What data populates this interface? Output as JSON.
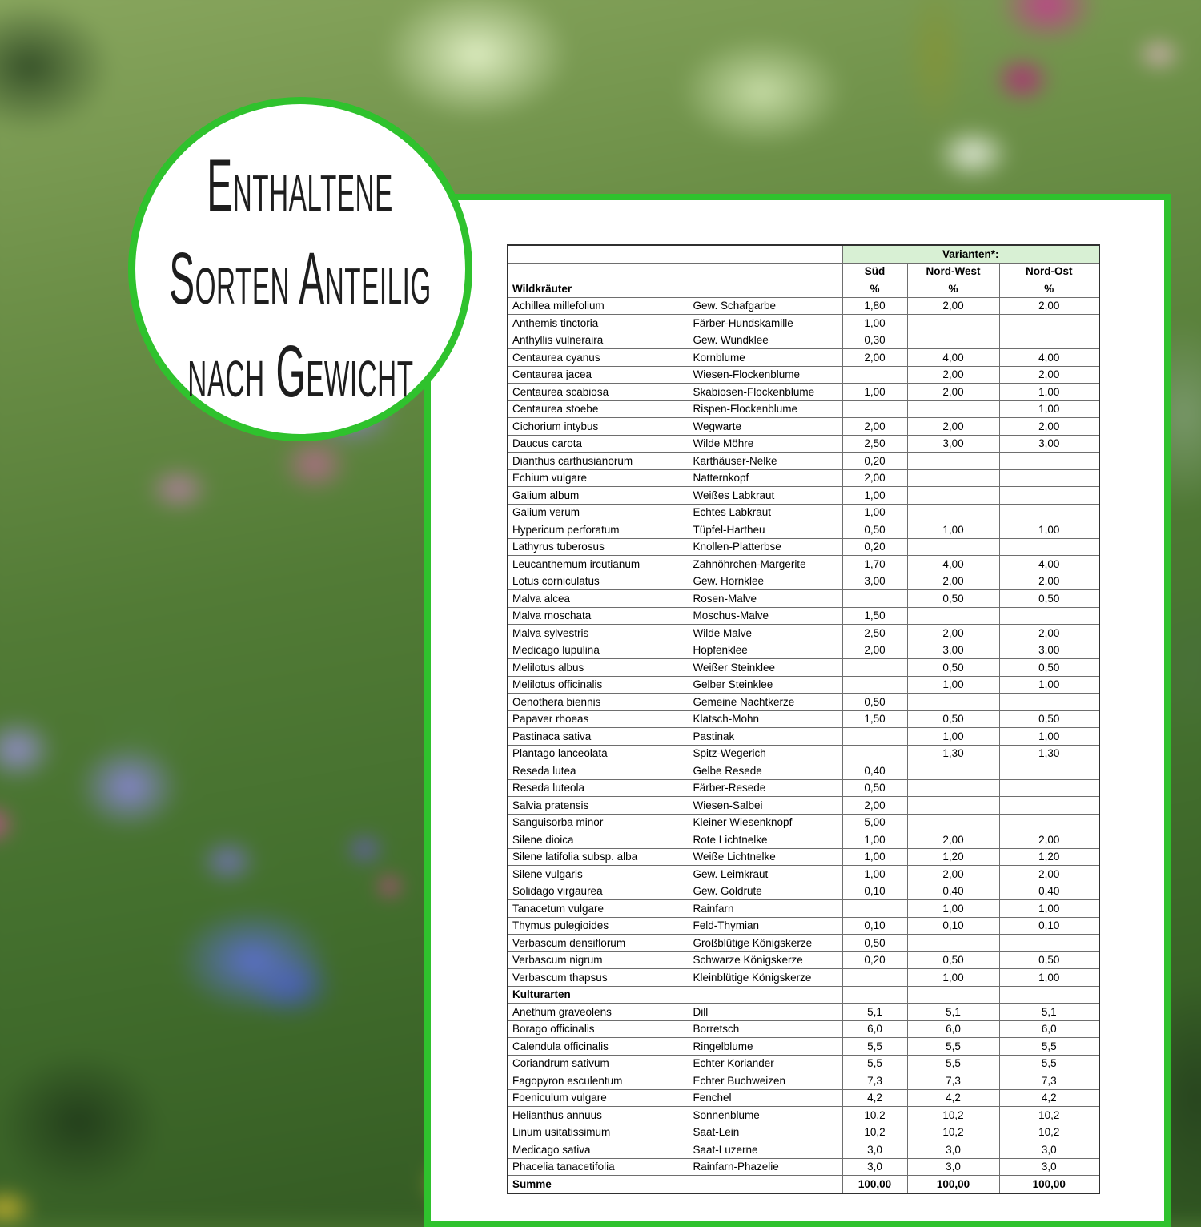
{
  "colors": {
    "accent_green": "#2fc22d",
    "variants_header_bg": "#d8f0d4",
    "panel_bg": "#ffffff",
    "text": "#000000"
  },
  "circle": {
    "lines": [
      "Enthaltene",
      "Sorten Anteilig",
      "nach Gewicht"
    ]
  },
  "table": {
    "variants_header": "Varianten*:",
    "variant_columns": [
      "Süd",
      "Nord-West",
      "Nord-Ost"
    ],
    "percent_symbol": "%",
    "sections": [
      {
        "label": "Wildkräuter",
        "show_percent": true,
        "rows": [
          {
            "latin": "Achillea millefolium",
            "german": "Gew. Schafgarbe",
            "sued": "1,80",
            "nordwest": "2,00",
            "nordost": "2,00"
          },
          {
            "latin": "Anthemis tinctoria",
            "german": "Färber-Hundskamille",
            "sued": "1,00",
            "nordwest": "",
            "nordost": ""
          },
          {
            "latin": "Anthyllis vulneraira",
            "german": "Gew. Wundklee",
            "sued": "0,30",
            "nordwest": "",
            "nordost": ""
          },
          {
            "latin": "Centaurea cyanus",
            "german": "Kornblume",
            "sued": "2,00",
            "nordwest": "4,00",
            "nordost": "4,00"
          },
          {
            "latin": "Centaurea jacea",
            "german": "Wiesen-Flockenblume",
            "sued": "",
            "nordwest": "2,00",
            "nordost": "2,00"
          },
          {
            "latin": "Centaurea scabiosa",
            "german": "Skabiosen-Flockenblume",
            "sued": "1,00",
            "nordwest": "2,00",
            "nordost": "1,00"
          },
          {
            "latin": "Centaurea stoebe",
            "german": "Rispen-Flockenblume",
            "sued": "",
            "nordwest": "",
            "nordost": "1,00"
          },
          {
            "latin": "Cichorium intybus",
            "german": "Wegwarte",
            "sued": "2,00",
            "nordwest": "2,00",
            "nordost": "2,00"
          },
          {
            "latin": "Daucus carota",
            "german": "Wilde Möhre",
            "sued": "2,50",
            "nordwest": "3,00",
            "nordost": "3,00"
          },
          {
            "latin": "Dianthus carthusianorum",
            "german": "Karthäuser-Nelke",
            "sued": "0,20",
            "nordwest": "",
            "nordost": ""
          },
          {
            "latin": "Echium vulgare",
            "german": "Natternkopf",
            "sued": "2,00",
            "nordwest": "",
            "nordost": ""
          },
          {
            "latin": "Galium album",
            "german": "Weißes Labkraut",
            "sued": "1,00",
            "nordwest": "",
            "nordost": ""
          },
          {
            "latin": "Galium verum",
            "german": "Echtes Labkraut",
            "sued": "1,00",
            "nordwest": "",
            "nordost": ""
          },
          {
            "latin": "Hypericum perforatum",
            "german": "Tüpfel-Hartheu",
            "sued": "0,50",
            "nordwest": "1,00",
            "nordost": "1,00"
          },
          {
            "latin": "Lathyrus tuberosus",
            "german": "Knollen-Platterbse",
            "sued": "0,20",
            "nordwest": "",
            "nordost": ""
          },
          {
            "latin": "Leucanthemum ircutianum",
            "german": "Zahnöhrchen-Margerite",
            "sued": "1,70",
            "nordwest": "4,00",
            "nordost": "4,00"
          },
          {
            "latin": "Lotus corniculatus",
            "german": "Gew. Hornklee",
            "sued": "3,00",
            "nordwest": "2,00",
            "nordost": "2,00"
          },
          {
            "latin": "Malva alcea",
            "german": "Rosen-Malve",
            "sued": "",
            "nordwest": "0,50",
            "nordost": "0,50"
          },
          {
            "latin": "Malva moschata",
            "german": "Moschus-Malve",
            "sued": "1,50",
            "nordwest": "",
            "nordost": ""
          },
          {
            "latin": "Malva sylvestris",
            "german": "Wilde Malve",
            "sued": "2,50",
            "nordwest": "2,00",
            "nordost": "2,00"
          },
          {
            "latin": "Medicago lupulina",
            "german": "Hopfenklee",
            "sued": "2,00",
            "nordwest": "3,00",
            "nordost": "3,00"
          },
          {
            "latin": "Melilotus albus",
            "german": "Weißer Steinklee",
            "sued": "",
            "nordwest": "0,50",
            "nordost": "0,50"
          },
          {
            "latin": "Melilotus officinalis",
            "german": "Gelber Steinklee",
            "sued": "",
            "nordwest": "1,00",
            "nordost": "1,00"
          },
          {
            "latin": "Oenothera biennis",
            "german": "Gemeine Nachtkerze",
            "sued": "0,50",
            "nordwest": "",
            "nordost": ""
          },
          {
            "latin": "Papaver rhoeas",
            "german": "Klatsch-Mohn",
            "sued": "1,50",
            "nordwest": "0,50",
            "nordost": "0,50"
          },
          {
            "latin": "Pastinaca sativa",
            "german": "Pastinak",
            "sued": "",
            "nordwest": "1,00",
            "nordost": "1,00"
          },
          {
            "latin": "Plantago lanceolata",
            "german": "Spitz-Wegerich",
            "sued": "",
            "nordwest": "1,30",
            "nordost": "1,30"
          },
          {
            "latin": "Reseda lutea",
            "german": "Gelbe Resede",
            "sued": "0,40",
            "nordwest": "",
            "nordost": ""
          },
          {
            "latin": "Reseda luteola",
            "german": "Färber-Resede",
            "sued": "0,50",
            "nordwest": "",
            "nordost": ""
          },
          {
            "latin": "Salvia pratensis",
            "german": "Wiesen-Salbei",
            "sued": "2,00",
            "nordwest": "",
            "nordost": ""
          },
          {
            "latin": "Sanguisorba minor",
            "german": "Kleiner Wiesenknopf",
            "sued": "5,00",
            "nordwest": "",
            "nordost": ""
          },
          {
            "latin": "Silene dioica",
            "german": "Rote Lichtnelke",
            "sued": "1,00",
            "nordwest": "2,00",
            "nordost": "2,00"
          },
          {
            "latin": "Silene latifolia subsp. alba",
            "german": "Weiße Lichtnelke",
            "sued": "1,00",
            "nordwest": "1,20",
            "nordost": "1,20"
          },
          {
            "latin": "Silene vulgaris",
            "german": "Gew. Leimkraut",
            "sued": "1,00",
            "nordwest": "2,00",
            "nordost": "2,00"
          },
          {
            "latin": "Solidago virgaurea",
            "german": "Gew. Goldrute",
            "sued": "0,10",
            "nordwest": "0,40",
            "nordost": "0,40"
          },
          {
            "latin": "Tanacetum vulgare",
            "german": "Rainfarn",
            "sued": "",
            "nordwest": "1,00",
            "nordost": "1,00"
          },
          {
            "latin": "Thymus pulegioides",
            "german": "Feld-Thymian",
            "sued": "0,10",
            "nordwest": "0,10",
            "nordost": "0,10"
          },
          {
            "latin": "Verbascum densiflorum",
            "german": "Großblütige Königskerze",
            "sued": "0,50",
            "nordwest": "",
            "nordost": ""
          },
          {
            "latin": "Verbascum nigrum",
            "german": "Schwarze Königskerze",
            "sued": "0,20",
            "nordwest": "0,50",
            "nordost": "0,50"
          },
          {
            "latin": "Verbascum thapsus",
            "german": "Kleinblütige Königskerze",
            "sued": "",
            "nordwest": "1,00",
            "nordost": "1,00"
          }
        ]
      },
      {
        "label": "Kulturarten",
        "show_percent": false,
        "rows": [
          {
            "latin": "Anethum graveolens",
            "german": "Dill",
            "sued": "5,1",
            "nordwest": "5,1",
            "nordost": "5,1"
          },
          {
            "latin": "Borago officinalis",
            "german": "Borretsch",
            "sued": "6,0",
            "nordwest": "6,0",
            "nordost": "6,0"
          },
          {
            "latin": "Calendula officinalis",
            "german": "Ringelblume",
            "sued": "5,5",
            "nordwest": "5,5",
            "nordost": "5,5"
          },
          {
            "latin": "Coriandrum sativum",
            "german": "Echter Koriander",
            "sued": "5,5",
            "nordwest": "5,5",
            "nordost": "5,5"
          },
          {
            "latin": "Fagopyron esculentum",
            "german": "Echter Buchweizen",
            "sued": "7,3",
            "nordwest": "7,3",
            "nordost": "7,3"
          },
          {
            "latin": "Foeniculum vulgare",
            "german": "Fenchel",
            "sued": "4,2",
            "nordwest": "4,2",
            "nordost": "4,2"
          },
          {
            "latin": "Helianthus annuus",
            "german": "Sonnenblume",
            "sued": "10,2",
            "nordwest": "10,2",
            "nordost": "10,2"
          },
          {
            "latin": "Linum usitatissimum",
            "german": "Saat-Lein",
            "sued": "10,2",
            "nordwest": "10,2",
            "nordost": "10,2"
          },
          {
            "latin": "Medicago sativa",
            "german": "Saat-Luzerne",
            "sued": "3,0",
            "nordwest": "3,0",
            "nordost": "3,0"
          },
          {
            "latin": "Phacelia tanacetifolia",
            "german": "Rainfarn-Phazelie",
            "sued": "3,0",
            "nordwest": "3,0",
            "nordost": "3,0"
          }
        ]
      }
    ],
    "summary": {
      "label": "Summe",
      "sued": "100,00",
      "nordwest": "100,00",
      "nordost": "100,00"
    }
  }
}
